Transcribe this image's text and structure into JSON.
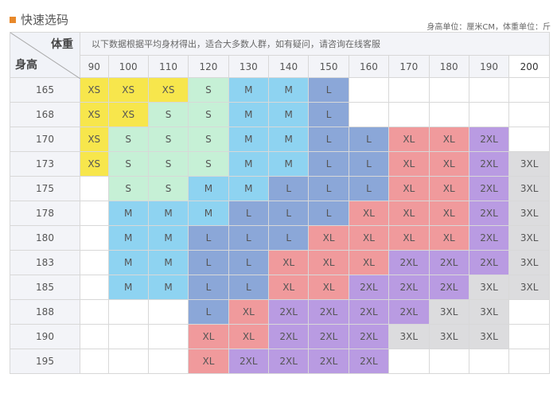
{
  "title": "快速选码",
  "units": "身高单位：厘米CM，体重单位：斤",
  "weight_label": "体重",
  "height_label": "身高",
  "notice": "以下数据根据平均身材得出，适合大多数人群，如有疑问，请咨询在线客服",
  "weights": [
    "90",
    "100",
    "110",
    "120",
    "130",
    "140",
    "150",
    "160",
    "170",
    "180",
    "190",
    "200"
  ],
  "colors": {
    "XS": "#f7e64c",
    "S": "#c6f0d6",
    "M": "#8ed3f1",
    "L": "#8ba7d8",
    "XL": "#f09a9c",
    "2XL": "#b99be2",
    "3XL": "#dcdcde"
  },
  "rows": [
    {
      "height": "165",
      "sizes": [
        "XS",
        "XS",
        "XS",
        "S",
        "M",
        "M",
        "L",
        "",
        "",
        "",
        "",
        ""
      ]
    },
    {
      "height": "168",
      "sizes": [
        "XS",
        "XS",
        "S",
        "S",
        "M",
        "M",
        "L",
        "",
        "",
        "",
        "",
        ""
      ]
    },
    {
      "height": "170",
      "sizes": [
        "XS",
        "S",
        "S",
        "S",
        "M",
        "M",
        "L",
        "L",
        "XL",
        "XL",
        "2XL",
        ""
      ]
    },
    {
      "height": "173",
      "sizes": [
        "XS",
        "S",
        "S",
        "S",
        "M",
        "M",
        "L",
        "L",
        "XL",
        "XL",
        "2XL",
        "3XL"
      ]
    },
    {
      "height": "175",
      "sizes": [
        "",
        "S",
        "S",
        "M",
        "M",
        "L",
        "L",
        "L",
        "XL",
        "XL",
        "2XL",
        "3XL"
      ]
    },
    {
      "height": "178",
      "sizes": [
        "",
        "M",
        "M",
        "M",
        "L",
        "L",
        "L",
        "XL",
        "XL",
        "XL",
        "2XL",
        "3XL"
      ]
    },
    {
      "height": "180",
      "sizes": [
        "",
        "M",
        "M",
        "L",
        "L",
        "L",
        "XL",
        "XL",
        "XL",
        "XL",
        "2XL",
        "3XL"
      ]
    },
    {
      "height": "183",
      "sizes": [
        "",
        "M",
        "M",
        "L",
        "L",
        "XL",
        "XL",
        "XL",
        "2XL",
        "2XL",
        "2XL",
        "3XL"
      ]
    },
    {
      "height": "185",
      "sizes": [
        "",
        "M",
        "M",
        "L",
        "L",
        "XL",
        "XL",
        "2XL",
        "2XL",
        "2XL",
        "3XL",
        "3XL"
      ]
    },
    {
      "height": "188",
      "sizes": [
        "",
        "",
        "",
        "L",
        "XL",
        "2XL",
        "2XL",
        "2XL",
        "2XL",
        "3XL",
        "3XL",
        ""
      ]
    },
    {
      "height": "190",
      "sizes": [
        "",
        "",
        "",
        "XL",
        "XL",
        "2XL",
        "2XL",
        "2XL",
        "3XL",
        "3XL",
        "3XL",
        ""
      ]
    },
    {
      "height": "195",
      "sizes": [
        "",
        "",
        "",
        "XL",
        "2XL",
        "2XL",
        "2XL",
        "2XL",
        "",
        "",
        "",
        ""
      ]
    }
  ]
}
